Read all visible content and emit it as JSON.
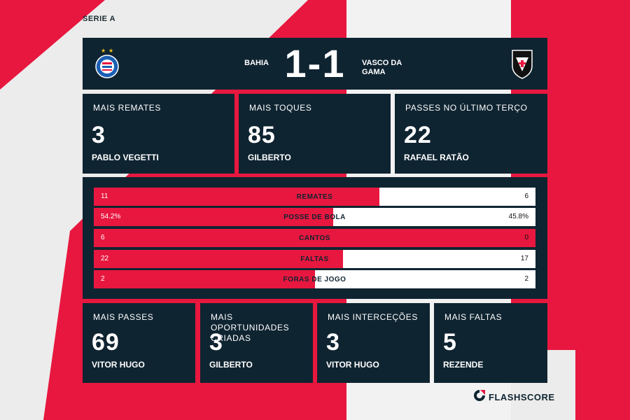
{
  "league": "SERIE A",
  "match": {
    "home_team": "BAHIA",
    "away_team": "VASCO DA GAMA",
    "score": "1-1",
    "home_crest_icon": "bahia-crest-icon",
    "away_crest_icon": "vasco-crest-icon"
  },
  "top_cards": [
    {
      "label": "MAIS REMATES",
      "value": "3",
      "player": "PABLO VEGETTI"
    },
    {
      "label": "MAIS TOQUES",
      "value": "85",
      "player": "GILBERTO"
    },
    {
      "label": "PASSES NO ÚLTIMO TERÇO",
      "value": "22",
      "player": "RAFAEL RATÃO"
    }
  ],
  "stats": [
    {
      "name": "REMATES",
      "home": "11",
      "away": "6",
      "home_share": 0.647
    },
    {
      "name": "POSSE DE BOLA",
      "home": "54.2%",
      "away": "45.8%",
      "home_share": 0.542
    },
    {
      "name": "CANTOS",
      "home": "6",
      "away": "0",
      "home_share": 1.0
    },
    {
      "name": "FALTAS",
      "home": "22",
      "away": "17",
      "home_share": 0.564
    },
    {
      "name": "FORAS DE JOGO",
      "home": "2",
      "away": "2",
      "home_share": 0.5
    }
  ],
  "bottom_cards": [
    {
      "label": "MAIS PASSES",
      "value": "69",
      "player": "VITOR HUGO"
    },
    {
      "label": "MAIS OPORTUNIDADES CRIADAS",
      "value": "3",
      "player": "GILBERTO"
    },
    {
      "label": "MAIS INTERCEÇÕES",
      "value": "3",
      "player": "VITOR HUGO"
    },
    {
      "label": "MAIS FALTAS",
      "value": "5",
      "player": "REZENDE"
    }
  ],
  "brand": {
    "name": "FLASHSCORE",
    "icon": "flashscore-logo-icon"
  },
  "colors": {
    "accent": "#e8173f",
    "panel": "#0f2431",
    "background": "#ececec"
  }
}
